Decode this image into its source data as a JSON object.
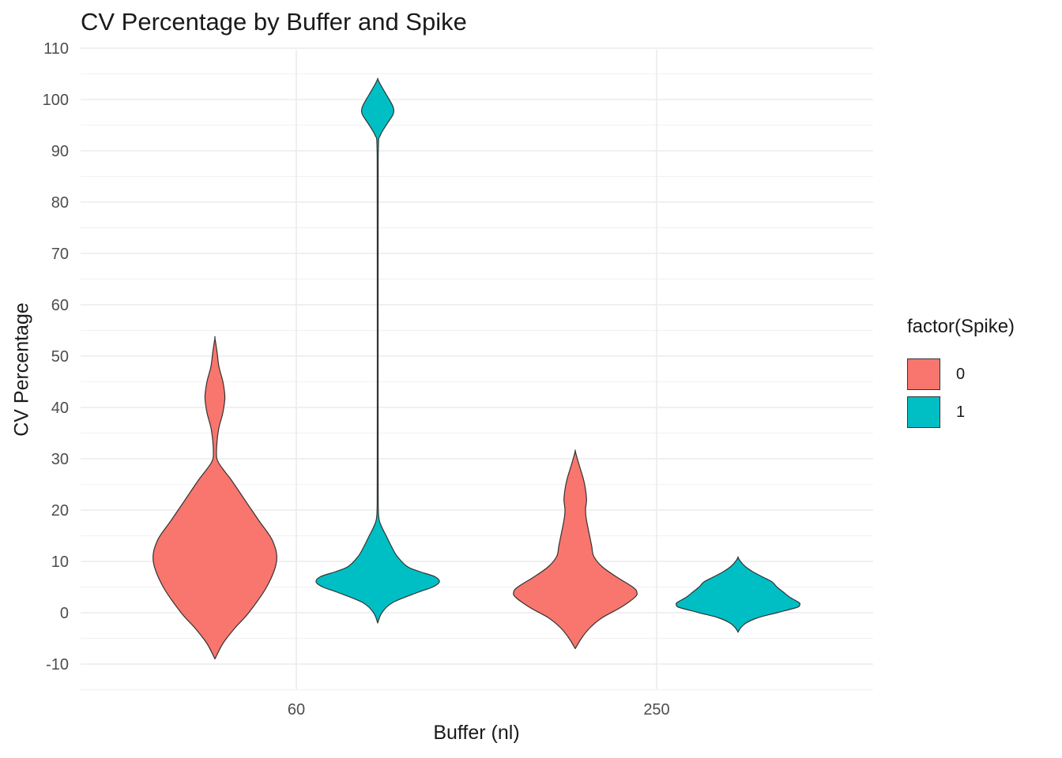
{
  "chart_data": {
    "type": "violin",
    "title": "CV Percentage by Buffer and Spike",
    "xlabel": "Buffer (nl)",
    "ylabel": "CV Percentage",
    "categories": [
      "60",
      "250"
    ],
    "ylim": [
      -15,
      110
    ],
    "yticks": [
      -10,
      0,
      10,
      20,
      30,
      40,
      50,
      60,
      70,
      80,
      90,
      100,
      110
    ],
    "grid": true,
    "legend": {
      "title": "factor(Spike)",
      "position": "right",
      "entries": [
        {
          "label": "0",
          "color": "#F8766D"
        },
        {
          "label": "1",
          "color": "#00BFC4"
        }
      ]
    },
    "series": [
      {
        "category": "60",
        "spike": "0",
        "color": "#F8766D",
        "ymin": -9,
        "ymax": 53.5,
        "profile": [
          [
            -9,
            0
          ],
          [
            -6,
            4
          ],
          [
            -3,
            10
          ],
          [
            0,
            17
          ],
          [
            5,
            26
          ],
          [
            10,
            31
          ],
          [
            14,
            29
          ],
          [
            18,
            22
          ],
          [
            22,
            15
          ],
          [
            26,
            8
          ],
          [
            28,
            4
          ],
          [
            30,
            1
          ],
          [
            33,
            1
          ],
          [
            36,
            2
          ],
          [
            39,
            4
          ],
          [
            42,
            5
          ],
          [
            45,
            4
          ],
          [
            48,
            2
          ],
          [
            51,
            1
          ],
          [
            53.5,
            0
          ]
        ]
      },
      {
        "category": "60",
        "spike": "1",
        "color": "#00BFC4",
        "ymin": -2,
        "ymax": 104,
        "profile": [
          [
            -2,
            0
          ],
          [
            0,
            5
          ],
          [
            2,
            18
          ],
          [
            4,
            48
          ],
          [
            5,
            65
          ],
          [
            6,
            73
          ],
          [
            7,
            68
          ],
          [
            8,
            50
          ],
          [
            9,
            35
          ],
          [
            11,
            23
          ],
          [
            13,
            16
          ],
          [
            15,
            10
          ],
          [
            17,
            4
          ],
          [
            19,
            1
          ],
          [
            25,
            0.6
          ],
          [
            50,
            0.5
          ],
          [
            80,
            0.6
          ],
          [
            91,
            0.8
          ],
          [
            93,
            3
          ],
          [
            95,
            10
          ],
          [
            97,
            18
          ],
          [
            98,
            19
          ],
          [
            99,
            17
          ],
          [
            101,
            10
          ],
          [
            103,
            3
          ],
          [
            104,
            0
          ]
        ]
      },
      {
        "category": "250",
        "spike": "0",
        "color": "#F8766D",
        "ymin": -7,
        "ymax": 31.5,
        "profile": [
          [
            -7,
            0
          ],
          [
            -5,
            3
          ],
          [
            -3,
            7
          ],
          [
            -1,
            13
          ],
          [
            1,
            22
          ],
          [
            3,
            29
          ],
          [
            4,
            30
          ],
          [
            5,
            28
          ],
          [
            7,
            20
          ],
          [
            9,
            13
          ],
          [
            11,
            9
          ],
          [
            13,
            8
          ],
          [
            15,
            7
          ],
          [
            18,
            5.5
          ],
          [
            20,
            5
          ],
          [
            22,
            5.5
          ],
          [
            24,
            5
          ],
          [
            26,
            4
          ],
          [
            28,
            2.5
          ],
          [
            30,
            1
          ],
          [
            31.5,
            0
          ]
        ]
      },
      {
        "category": "250",
        "spike": "1",
        "color": "#00BFC4",
        "ymin": -3.8,
        "ymax": 10.8,
        "profile": [
          [
            -3.8,
            0
          ],
          [
            -3,
            3
          ],
          [
            -2,
            10
          ],
          [
            -1,
            24
          ],
          [
            0,
            48
          ],
          [
            1,
            72
          ],
          [
            1.5,
            76
          ],
          [
            2,
            75
          ],
          [
            3,
            64
          ],
          [
            4,
            56
          ],
          [
            5,
            48
          ],
          [
            6,
            42
          ],
          [
            7,
            30
          ],
          [
            8,
            18
          ],
          [
            9,
            9
          ],
          [
            10,
            3
          ],
          [
            10.8,
            0
          ]
        ]
      }
    ]
  }
}
